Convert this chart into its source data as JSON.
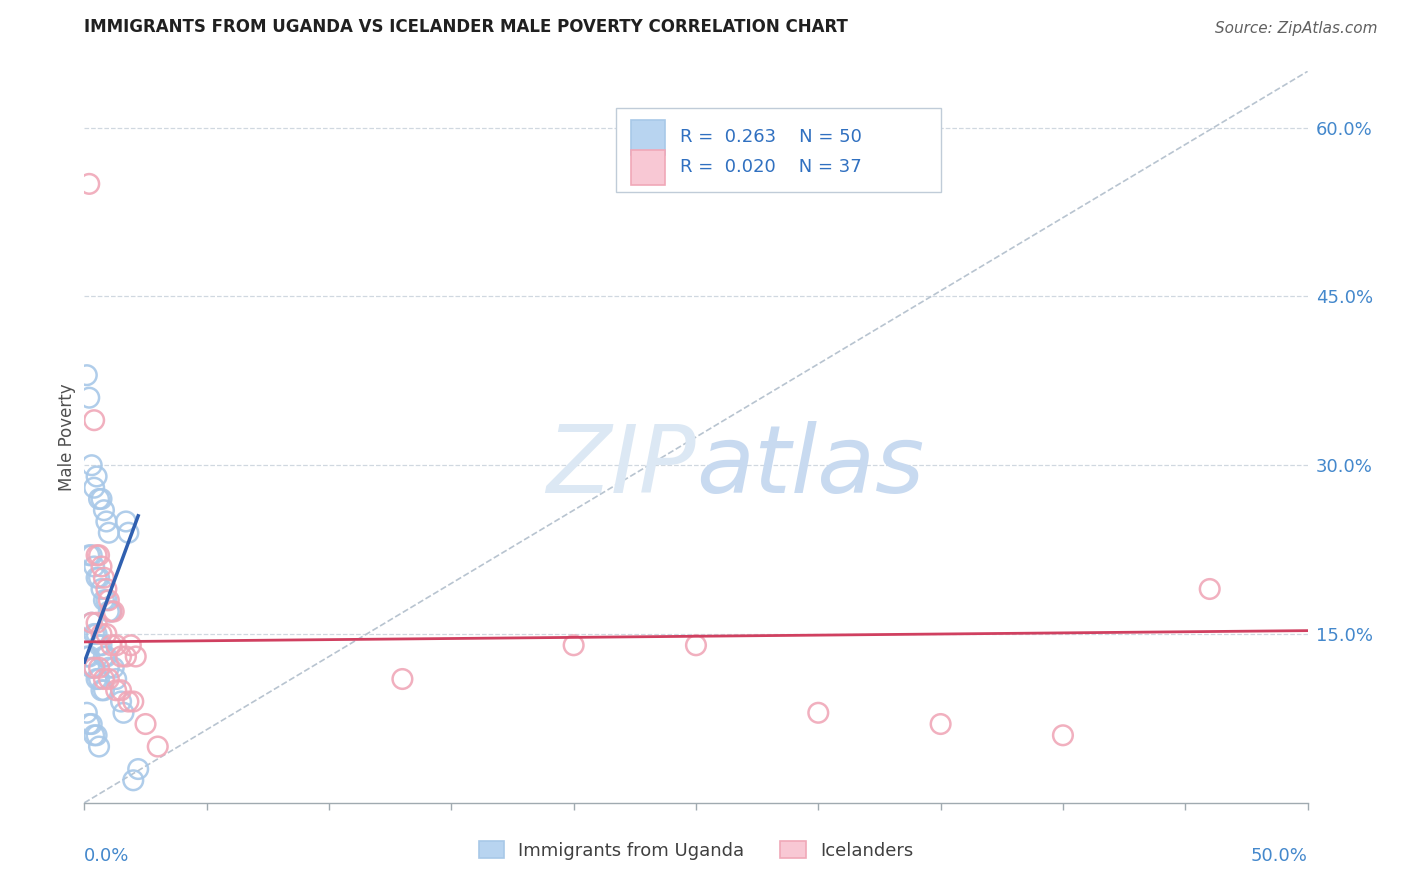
{
  "title": "IMMIGRANTS FROM UGANDA VS ICELANDER MALE POVERTY CORRELATION CHART",
  "source": "Source: ZipAtlas.com",
  "ylabel": "Male Poverty",
  "right_yticks": [
    "60.0%",
    "45.0%",
    "30.0%",
    "15.0%"
  ],
  "right_ytick_vals": [
    0.6,
    0.45,
    0.3,
    0.15
  ],
  "xlim": [
    0.0,
    0.5
  ],
  "ylim": [
    0.0,
    0.65
  ],
  "legend1_label": "Immigrants from Uganda",
  "legend2_label": "Icelanders",
  "r1": 0.263,
  "n1": 50,
  "r2": 0.02,
  "n2": 37,
  "blue_scatter_color": "#a8c8e8",
  "pink_scatter_color": "#f0a8b8",
  "blue_line_color": "#3060b0",
  "pink_line_color": "#d04060",
  "dashed_line_color": "#b8c4d0",
  "watermark_color": "#dce8f4",
  "grid_color": "#d0d8e0",
  "background_color": "#ffffff",
  "blue_scatter_x": [
    0.001,
    0.002,
    0.003,
    0.004,
    0.005,
    0.006,
    0.007,
    0.008,
    0.009,
    0.01,
    0.002,
    0.003,
    0.004,
    0.005,
    0.006,
    0.007,
    0.008,
    0.009,
    0.01,
    0.011,
    0.003,
    0.004,
    0.005,
    0.006,
    0.007,
    0.008,
    0.009,
    0.01,
    0.012,
    0.013,
    0.001,
    0.002,
    0.003,
    0.004,
    0.005,
    0.006,
    0.007,
    0.008,
    0.015,
    0.016,
    0.001,
    0.002,
    0.003,
    0.004,
    0.005,
    0.006,
    0.017,
    0.018,
    0.02,
    0.022
  ],
  "blue_scatter_y": [
    0.38,
    0.36,
    0.3,
    0.28,
    0.29,
    0.27,
    0.27,
    0.26,
    0.25,
    0.24,
    0.22,
    0.22,
    0.21,
    0.2,
    0.2,
    0.19,
    0.18,
    0.18,
    0.17,
    0.17,
    0.16,
    0.15,
    0.15,
    0.14,
    0.14,
    0.13,
    0.13,
    0.12,
    0.12,
    0.11,
    0.13,
    0.13,
    0.12,
    0.12,
    0.11,
    0.11,
    0.1,
    0.1,
    0.09,
    0.08,
    0.08,
    0.07,
    0.07,
    0.06,
    0.06,
    0.05,
    0.25,
    0.24,
    0.02,
    0.03
  ],
  "pink_scatter_x": [
    0.002,
    0.004,
    0.005,
    0.006,
    0.007,
    0.008,
    0.009,
    0.01,
    0.011,
    0.012,
    0.003,
    0.005,
    0.007,
    0.009,
    0.011,
    0.013,
    0.015,
    0.017,
    0.019,
    0.021,
    0.004,
    0.006,
    0.008,
    0.01,
    0.013,
    0.015,
    0.018,
    0.02,
    0.025,
    0.13,
    0.2,
    0.25,
    0.3,
    0.35,
    0.4,
    0.46,
    0.03
  ],
  "pink_scatter_y": [
    0.55,
    0.34,
    0.22,
    0.22,
    0.21,
    0.2,
    0.19,
    0.18,
    0.17,
    0.17,
    0.16,
    0.16,
    0.15,
    0.15,
    0.14,
    0.14,
    0.13,
    0.13,
    0.14,
    0.13,
    0.12,
    0.12,
    0.11,
    0.11,
    0.1,
    0.1,
    0.09,
    0.09,
    0.07,
    0.11,
    0.14,
    0.14,
    0.08,
    0.07,
    0.06,
    0.19,
    0.05
  ]
}
